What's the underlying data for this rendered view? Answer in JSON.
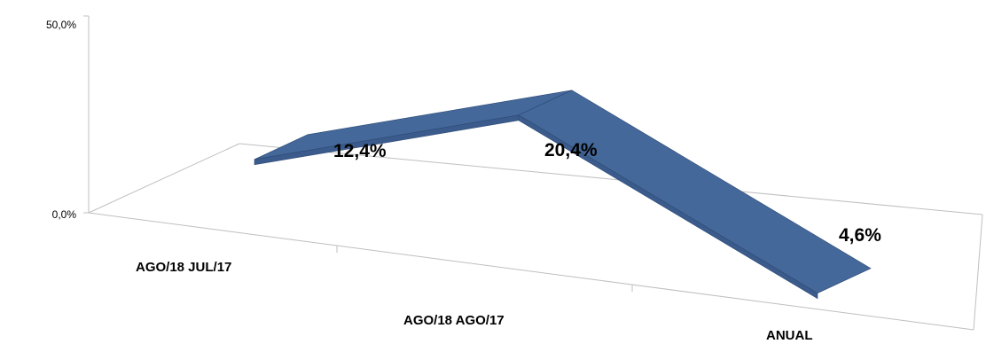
{
  "chart_data": {
    "type": "line",
    "style": "3d-ribbon",
    "title": "",
    "xlabel": "",
    "ylabel": "",
    "categories": [
      "AGO/18 JUL/17",
      "AGO/18 AGO/17",
      "ANUAL"
    ],
    "series": [
      {
        "values": [
          12.4,
          20.4,
          4.6
        ],
        "labels": [
          "12,4%",
          "20,4%",
          "4,6%"
        ]
      }
    ],
    "ylim": [
      0,
      50
    ],
    "y_ticks": [
      "0,0%",
      "50,0%"
    ],
    "grid": false,
    "legend": "none",
    "colors": {
      "ribbon_top": "#44689a",
      "ribbon_front": "#3a5b8c",
      "ribbon_edge": "#2e4a74",
      "axis": "#bfbfbf"
    }
  }
}
